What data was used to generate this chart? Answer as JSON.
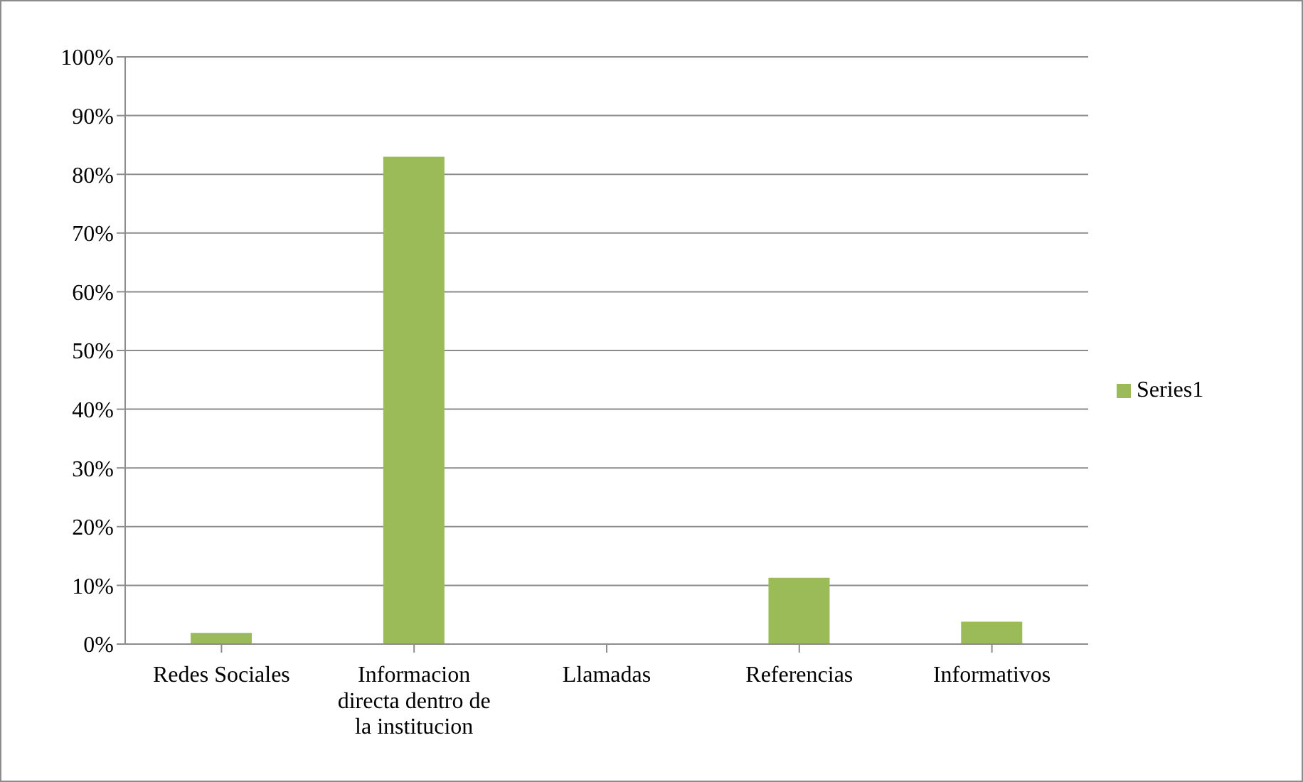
{
  "chart_data": {
    "type": "bar",
    "categories": [
      "Redes Sociales",
      "Informacion directa dentro de la institucion",
      "Llamadas",
      "Referencias",
      "Informativos"
    ],
    "series": [
      {
        "name": "Series1",
        "color": "#9bbb59",
        "values": [
          1.9,
          83,
          0,
          11.3,
          3.8
        ]
      }
    ],
    "ylim": [
      0,
      100
    ],
    "yticks": [
      {
        "value": 0,
        "label": "0%"
      },
      {
        "value": 10,
        "label": "10%"
      },
      {
        "value": 20,
        "label": "20%"
      },
      {
        "value": 30,
        "label": "30%"
      },
      {
        "value": 40,
        "label": "40%"
      },
      {
        "value": 50,
        "label": "50%"
      },
      {
        "value": 60,
        "label": "60%"
      },
      {
        "value": 70,
        "label": "70%"
      },
      {
        "value": 80,
        "label": "80%"
      },
      {
        "value": 90,
        "label": "90%"
      },
      {
        "value": 100,
        "label": "100%"
      }
    ],
    "grid": "y",
    "legend": "right"
  }
}
